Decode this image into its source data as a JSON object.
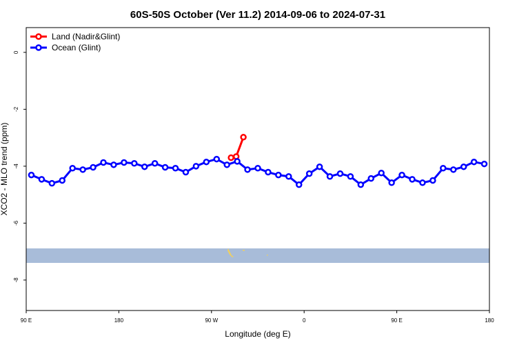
{
  "chart_data": {
    "type": "line",
    "title": "60S-50S October (Ver 11.2)   2014-09-06 to 2024-07-31",
    "xlabel": "Longitude (deg E)",
    "ylabel": "XCO2 - MLO trend (ppm)",
    "xlim": [
      90,
      540
    ],
    "ylim": [
      -9.07,
      0.87
    ],
    "xticks": [
      {
        "value": 90,
        "label": "90 E"
      },
      180,
      {
        "value": 270,
        "label": "90 W"
      },
      {
        "value": 360,
        "label": "0"
      },
      {
        "value": 450,
        "label": "90 E"
      },
      {
        "value": 540,
        "label": "180"
      }
    ],
    "yticks": [
      0,
      -2,
      -4,
      -6,
      -8
    ],
    "legend": "top-left",
    "series": [
      {
        "name": "Land (Nadir&Glint)",
        "color": "#ff0000",
        "x": [
          289,
          294,
          301
        ],
        "values": [
          -3.7,
          -3.66,
          -2.98
        ]
      },
      {
        "name": "Ocean (Glint)",
        "color": "#0000ff",
        "x": [
          95,
          105,
          115,
          125,
          135,
          145,
          155,
          165,
          175,
          185,
          195,
          205,
          215,
          225,
          235,
          245,
          255,
          265,
          275,
          285,
          295,
          305,
          315,
          325,
          335,
          345,
          355,
          365,
          375,
          385,
          395,
          405,
          415,
          425,
          435,
          445,
          455,
          465,
          475,
          485,
          495,
          505,
          515,
          525,
          535
        ],
        "values": [
          -4.31,
          -4.46,
          -4.6,
          -4.5,
          -4.07,
          -4.12,
          -4.04,
          -3.87,
          -3.95,
          -3.87,
          -3.9,
          -4.02,
          -3.9,
          -4.04,
          -4.07,
          -4.21,
          -4.0,
          -3.85,
          -3.75,
          -3.95,
          -3.83,
          -4.12,
          -4.07,
          -4.21,
          -4.31,
          -4.36,
          -4.65,
          -4.26,
          -4.02,
          -4.36,
          -4.26,
          -4.36,
          -4.65,
          -4.43,
          -4.24,
          -4.58,
          -4.31,
          -4.46,
          -4.58,
          -4.5,
          -4.07,
          -4.12,
          -4.02,
          -3.85,
          -3.92
        ]
      }
    ]
  }
}
